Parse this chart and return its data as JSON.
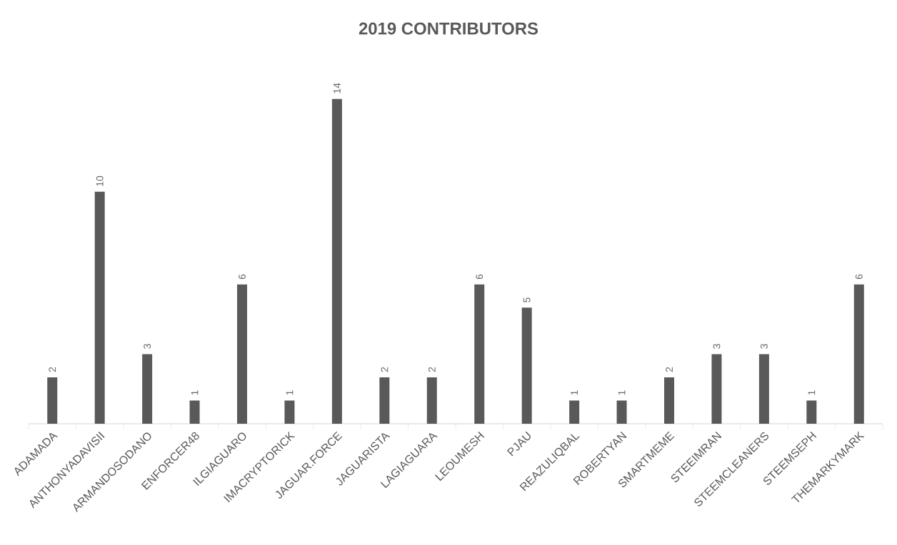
{
  "chart_data": {
    "type": "bar",
    "title": "2019 CONTRIBUTORS",
    "categories": [
      "ADAMADA",
      "ANTHONYADAVISII",
      "ARMANDOSODANO",
      "ENFORCER48",
      "ILGIAGUARO",
      "IMACRYPTORICK",
      "JAGUAR.FORCE",
      "JAGUARISTA",
      "LAGIAGUARA",
      "LEOUMESH",
      "PJAU",
      "REAZULIQBAL",
      "ROBERTYAN",
      "SMARTMEME",
      "STEEIMRAN",
      "STEEMCLEANERS",
      "STEEMSEPH",
      "THEMARKYMARK"
    ],
    "values": [
      2,
      10,
      3,
      1,
      6,
      1,
      14,
      2,
      2,
      6,
      5,
      1,
      1,
      2,
      3,
      3,
      1,
      6
    ],
    "color": "#595959",
    "data_labels": true
  }
}
